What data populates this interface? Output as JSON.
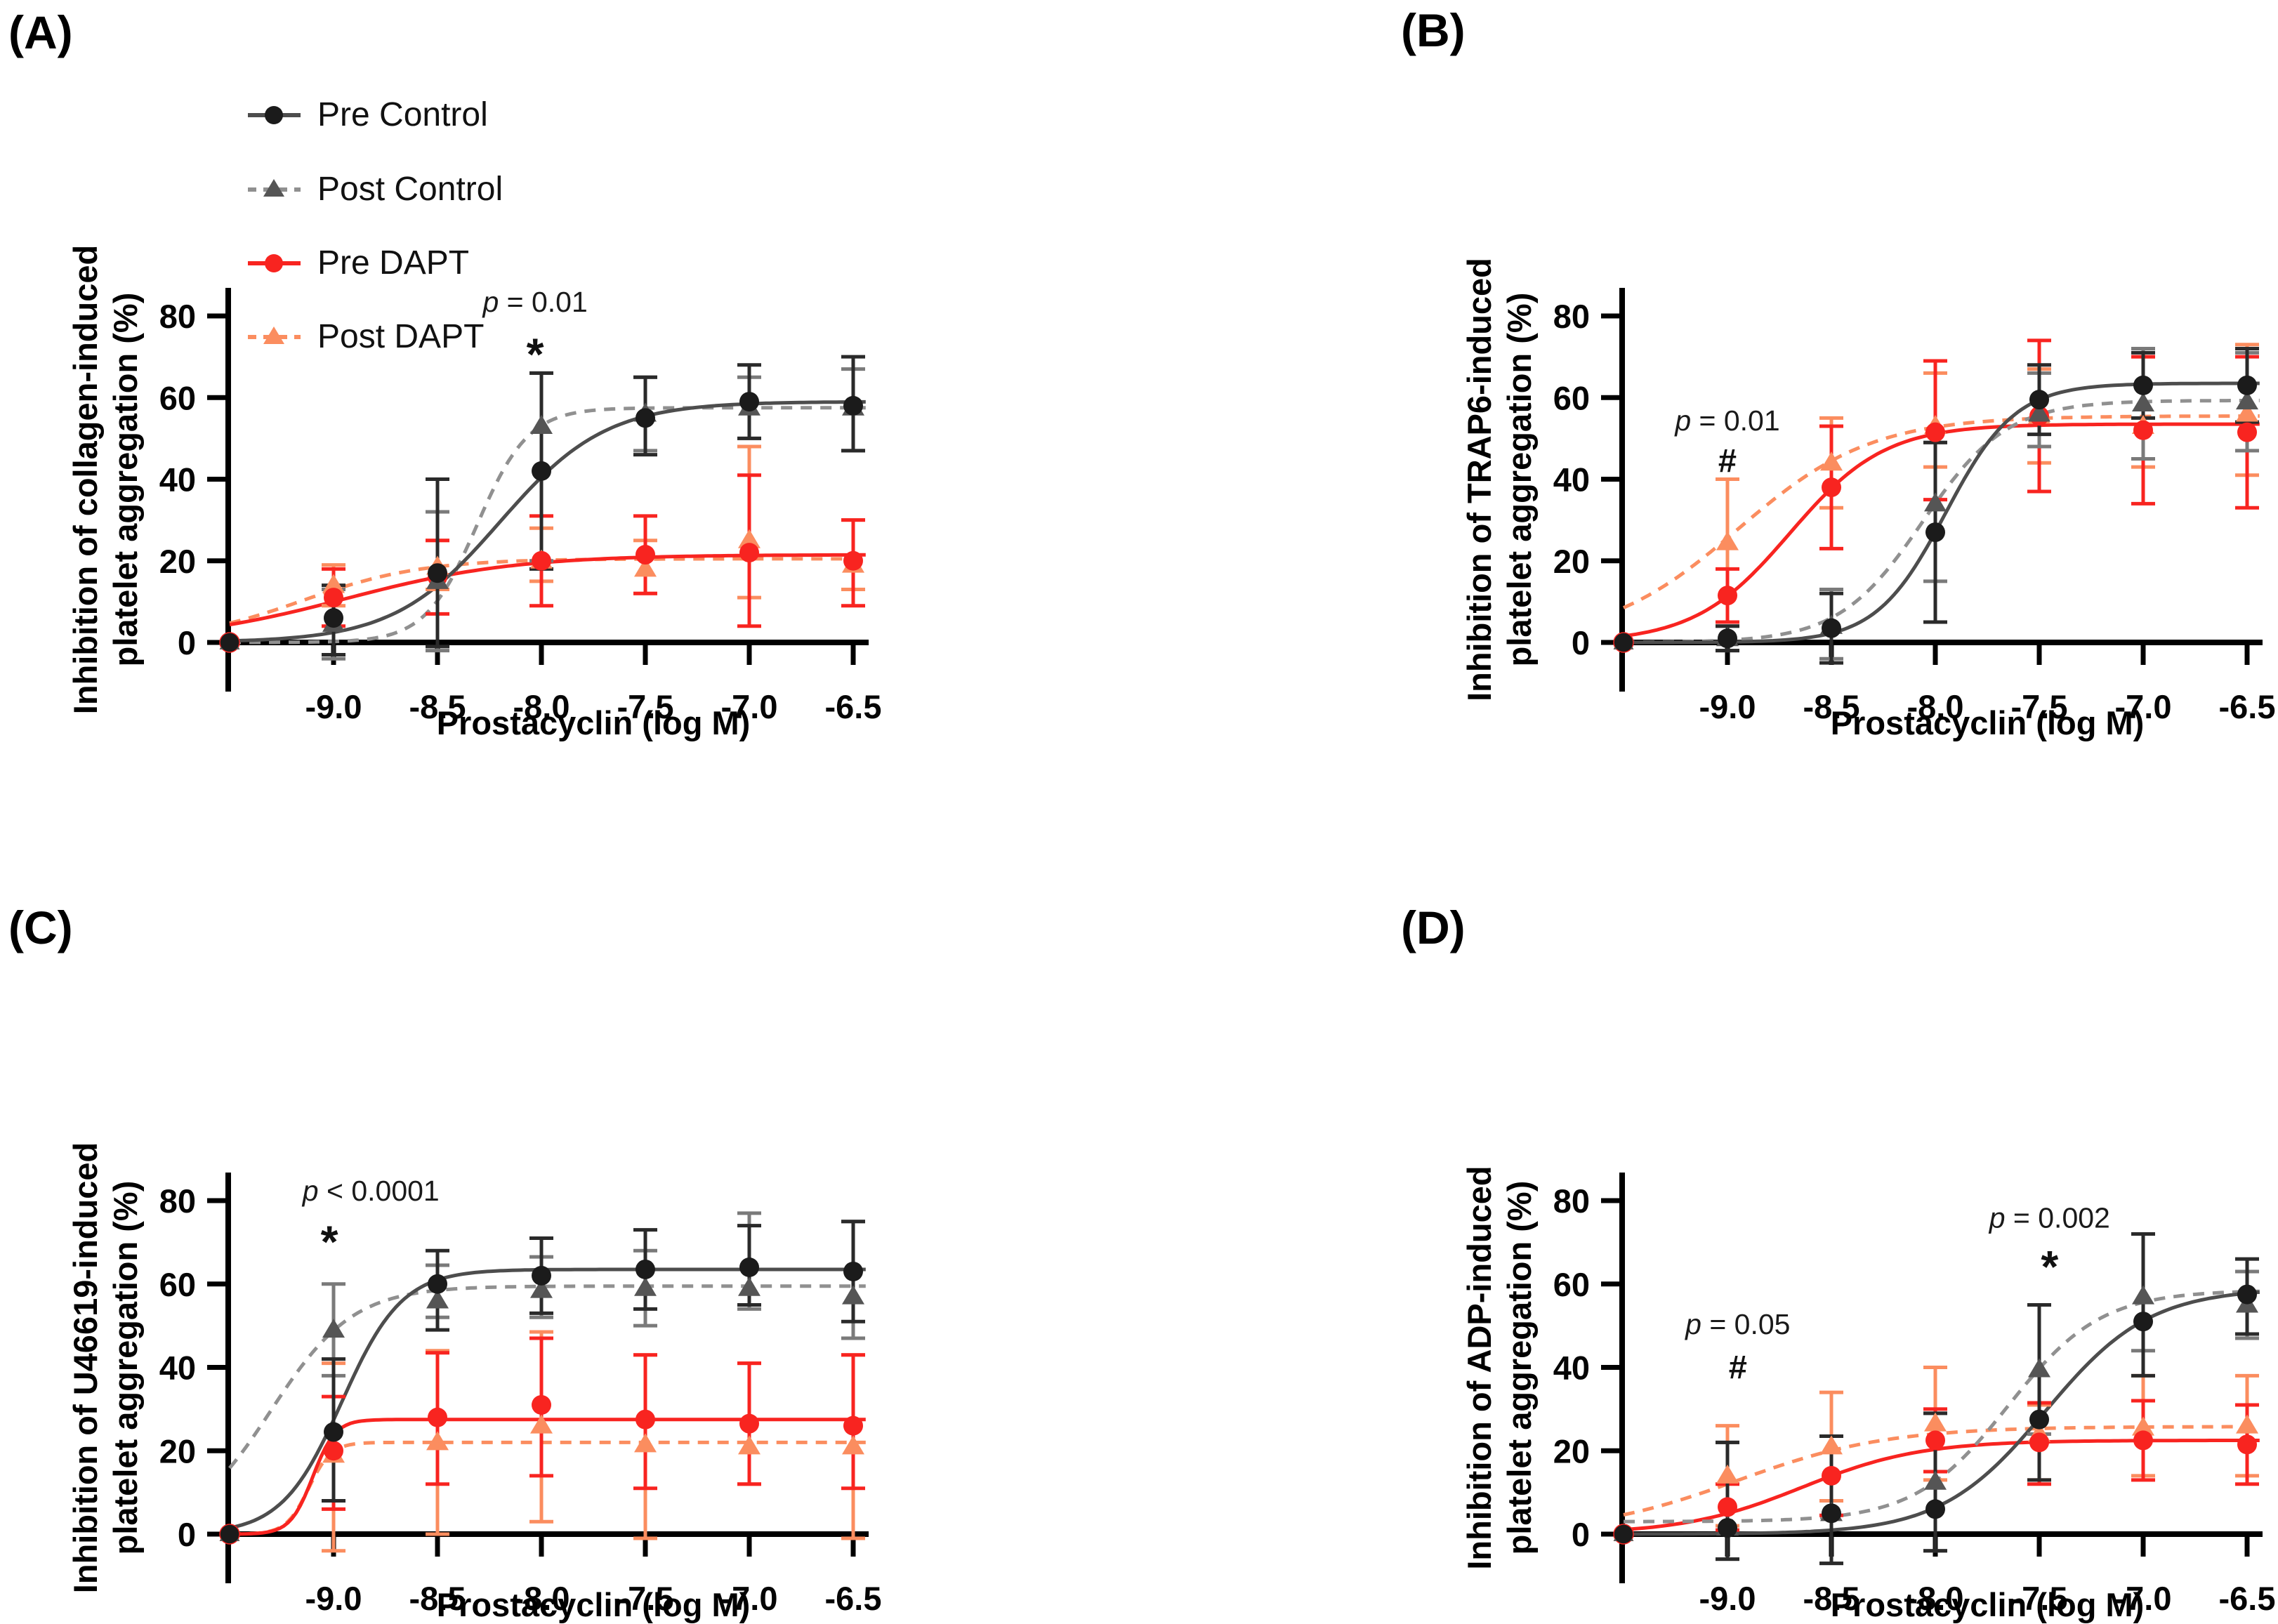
{
  "legend": {
    "items": [
      {
        "label": "Pre Control",
        "series": "pre_control"
      },
      {
        "label": "Post Control",
        "series": "post_control"
      },
      {
        "label": "Pre DAPT",
        "series": "pre_dapt"
      },
      {
        "label": "Post DAPT",
        "series": "post_dapt"
      }
    ]
  },
  "styles": {
    "pre_control": {
      "line": "#4d4d4d",
      "marker": "#1b1b1b",
      "error": "#2a2a2a",
      "dash": null,
      "marker_shape": "circle"
    },
    "post_control": {
      "line": "#909090",
      "marker": "#555555",
      "error": "#7a7a7a",
      "dash": "16 12",
      "marker_shape": "triangle"
    },
    "pre_dapt": {
      "line": "#F82420",
      "marker": "#F82420",
      "error": "#F82420",
      "dash": null,
      "marker_shape": "circle"
    },
    "post_dapt": {
      "line": "#FB8D5F",
      "marker": "#FB8D5F",
      "error": "#FB8D5F",
      "dash": "16 12",
      "marker_shape": "triangle"
    }
  },
  "chart_data": [
    {
      "panel": "A",
      "panel_label": "(A)",
      "type": "line",
      "agonist": "collagen",
      "ylabel": "Inhibition of collagen-induced\nplatelet aggregation (%)",
      "xlabel": "Prostacyclin (log M)",
      "x": [
        -9.0,
        -8.5,
        -8.0,
        -7.5,
        -7.0,
        -6.5
      ],
      "xticks": [
        "-9.0",
        "-8.5",
        "-8.0",
        "-7.5",
        "-7.0",
        "-6.5"
      ],
      "yticks": [
        "0",
        "20",
        "40",
        "60",
        "80"
      ],
      "xlim": [
        -9.5,
        -6.5
      ],
      "ylim": [
        0,
        80
      ],
      "baseline_point": {
        "x": -9.5,
        "y": 0
      },
      "series": [
        {
          "name": "Pre Control",
          "key": "pre_control",
          "values": [
            6,
            17,
            42,
            55,
            59,
            58
          ],
          "err_lo": [
            -3,
            -1,
            18,
            46,
            50,
            47
          ],
          "err_hi": [
            14,
            40,
            66,
            65,
            68,
            70
          ],
          "curve": {
            "bottom": 0,
            "top": 59,
            "logec50": -8.2,
            "hill": 1.7
          }
        },
        {
          "name": "Post Control",
          "key": "post_control",
          "values": [
            4.5,
            15,
            53,
            56,
            57.5,
            57.5
          ],
          "err_lo": [
            -4,
            -2,
            20,
            47,
            50,
            47
          ],
          "err_hi": [
            13,
            32,
            66,
            65,
            65,
            67
          ],
          "curve": {
            "bottom": 0,
            "top": 57.5,
            "logec50": -8.31,
            "hill": 3.5
          }
        },
        {
          "name": "Pre DAPT",
          "key": "pre_dapt",
          "values": [
            11,
            16,
            20,
            21.5,
            22,
            20
          ],
          "err_lo": [
            4,
            7,
            9,
            12,
            4,
            9
          ],
          "err_hi": [
            18,
            25,
            31,
            31,
            41,
            30
          ],
          "curve": {
            "bottom": 0,
            "top": 21.5,
            "logec50": -8.94,
            "hill": 1.06
          }
        },
        {
          "name": "Post DAPT",
          "key": "post_dapt",
          "values": [
            14,
            18.5,
            20,
            18,
            25,
            19
          ],
          "err_lo": [
            9,
            13,
            15,
            12,
            11,
            13
          ],
          "err_hi": [
            19,
            25,
            28,
            25,
            48,
            30
          ],
          "curve": {
            "bottom": 0,
            "top": 20.5,
            "logec50": -9.15,
            "hill": 1.5
          }
        }
      ],
      "annotations": [
        {
          "text": "p = 0.01",
          "symbol": "*",
          "x": -8.03,
          "symbol_x": -8.03,
          "text_y": 81,
          "symbol_y": 72
        }
      ]
    },
    {
      "panel": "B",
      "panel_label": "(B)",
      "type": "line",
      "agonist": "TRAP6",
      "ylabel": "Inhibition of TRAP6-induced\nplatelet aggregation (%)",
      "xlabel": "Prostacyclin (log M)",
      "x": [
        -9.0,
        -8.5,
        -8.0,
        -7.5,
        -7.0,
        -6.5
      ],
      "xticks": [
        "-9.0",
        "-8.5",
        "-8.0",
        "-7.5",
        "-7.0",
        "-6.5"
      ],
      "yticks": [
        "0",
        "20",
        "40",
        "60",
        "80"
      ],
      "xlim": [
        -9.5,
        -6.5
      ],
      "ylim": [
        0,
        80
      ],
      "baseline_point": {
        "x": -9.5,
        "y": 0
      },
      "series": [
        {
          "name": "Pre Control",
          "key": "pre_control",
          "values": [
            1,
            3.5,
            27,
            59.5,
            63,
            63
          ],
          "err_lo": [
            -2,
            -5,
            5,
            51,
            55,
            54
          ],
          "err_hi": [
            4,
            12,
            49,
            68,
            71,
            72
          ],
          "curve": {
            "bottom": 0,
            "top": 63.5,
            "logec50": -7.95,
            "hill": 2.6
          }
        },
        {
          "name": "Post Control",
          "key": "post_control",
          "values": [
            1,
            4,
            34,
            56,
            58.5,
            59
          ],
          "err_lo": [
            -2,
            -4,
            15,
            48,
            45,
            47
          ],
          "err_hi": [
            4,
            13,
            49,
            66,
            72,
            71
          ],
          "curve": {
            "bottom": 0,
            "top": 59.3,
            "logec50": -8.06,
            "hill": 2.15
          }
        },
        {
          "name": "Pre DAPT",
          "key": "pre_dapt",
          "values": [
            11.5,
            38,
            51.5,
            55.5,
            52,
            51.5
          ],
          "err_lo": [
            5,
            23,
            35,
            37,
            34,
            33
          ],
          "err_hi": [
            18,
            53,
            69,
            74,
            70,
            70
          ],
          "curve": {
            "bottom": 0,
            "top": 53.5,
            "logec50": -8.7,
            "hill": 1.9
          }
        },
        {
          "name": "Post DAPT",
          "key": "post_dapt",
          "values": [
            24.5,
            44,
            53,
            55.5,
            53,
            56
          ],
          "err_lo": [
            5,
            33,
            43,
            44,
            43,
            41
          ],
          "err_hi": [
            40,
            55,
            66,
            67,
            70,
            73
          ],
          "curve": {
            "bottom": 0,
            "top": 55.5,
            "logec50": -8.95,
            "hill": 1.35
          }
        }
      ],
      "annotations": [
        {
          "text": "p = 0.01",
          "symbol": "#",
          "x": -9.0,
          "symbol_x": -9.0,
          "text_y": 52,
          "symbol_y": 44.5
        }
      ]
    },
    {
      "panel": "C",
      "panel_label": "(C)",
      "type": "line",
      "agonist": "U46619",
      "ylabel": "Inhibition of U46619-induced\nplatelet aggregation (%)",
      "xlabel": "Prostacyclin (log M)",
      "x": [
        -9.0,
        -8.5,
        -8.0,
        -7.5,
        -7.0,
        -6.5
      ],
      "xticks": [
        "-9.0",
        "-8.5",
        "-8.0",
        "-7.5",
        "-7.0",
        "-6.5"
      ],
      "yticks": [
        "0",
        "20",
        "40",
        "60",
        "80"
      ],
      "xlim": [
        -9.5,
        -6.5
      ],
      "ylim": [
        0,
        80
      ],
      "baseline_point": {
        "x": -9.5,
        "y": 0
      },
      "series": [
        {
          "name": "Pre Control",
          "key": "pre_control",
          "values": [
            24.5,
            60,
            62,
            63.5,
            64,
            63
          ],
          "err_lo": [
            8,
            49,
            53,
            54,
            55,
            51
          ],
          "err_hi": [
            42,
            68,
            71,
            73,
            74,
            75
          ],
          "curve": {
            "bottom": 0,
            "top": 63.5,
            "logec50": -8.96,
            "hill": 3.0
          }
        },
        {
          "name": "Post Control",
          "key": "post_control",
          "values": [
            49,
            56,
            58.5,
            59,
            59,
            57
          ],
          "err_lo": [
            38,
            52,
            52,
            50,
            54,
            47
          ],
          "err_hi": [
            60,
            64.5,
            66.5,
            68,
            77,
            75
          ],
          "curve": {
            "bottom": 0,
            "top": 59.5,
            "logec50": -9.3,
            "hill": 2.2
          }
        },
        {
          "name": "Pre DAPT",
          "key": "pre_dapt",
          "values": [
            20,
            28,
            31,
            27.5,
            26.5,
            26
          ],
          "err_lo": [
            6,
            12,
            14,
            11,
            12,
            11
          ],
          "err_hi": [
            33,
            43.5,
            47,
            43,
            41,
            43
          ],
          "curve": {
            "bottom": 0,
            "top": 27.5,
            "logec50": -9.1,
            "hill": 8
          }
        },
        {
          "name": "Post DAPT",
          "key": "post_dapt",
          "values": [
            19,
            22,
            26,
            21.5,
            21,
            21
          ],
          "err_lo": [
            -4,
            0,
            3,
            -1,
            12,
            -1
          ],
          "err_hi": [
            41,
            44,
            48.5,
            43,
            41,
            43
          ],
          "curve": {
            "bottom": 0,
            "top": 22,
            "logec50": -9.12,
            "hill": 8
          }
        }
      ],
      "annotations": [
        {
          "text": "p < 0.0001",
          "symbol": "*",
          "x": -8.82,
          "symbol_x": -9.02,
          "text_y": 80,
          "symbol_y": 71.5
        }
      ]
    },
    {
      "panel": "D",
      "panel_label": "(D)",
      "type": "line",
      "agonist": "ADP",
      "ylabel": "Inhibition of ADP-induced\nplatelet aggregation (%)",
      "xlabel": "Prostacyclin (log M)",
      "x": [
        -9.0,
        -8.5,
        -8.0,
        -7.5,
        -7.0,
        -6.5
      ],
      "xticks": [
        "-9.0",
        "-8.5",
        "-8.0",
        "-7.5",
        "-7.0",
        "-6.5"
      ],
      "yticks": [
        "0",
        "20",
        "40",
        "60",
        "80"
      ],
      "xlim": [
        -9.5,
        -6.5
      ],
      "ylim": [
        0,
        80
      ],
      "baseline_point": {
        "x": -9.5,
        "y": 0
      },
      "series": [
        {
          "name": "Pre Control",
          "key": "pre_control",
          "values": [
            1.5,
            5,
            6,
            27.5,
            51,
            57.5
          ],
          "err_lo": [
            -6,
            -7,
            -4,
            13,
            38,
            48
          ],
          "err_hi": [
            22,
            23.5,
            29,
            55,
            72,
            66
          ],
          "curve": {
            "bottom": 0,
            "top": 59,
            "logec50": -7.47,
            "hill": 1.73
          }
        },
        {
          "name": "Post Control",
          "key": "post_control",
          "values": [
            1.5,
            5,
            12.5,
            39.5,
            57,
            55
          ],
          "err_lo": [
            -6,
            -7,
            -4,
            24,
            44,
            47
          ],
          "err_hi": [
            22,
            23.5,
            29,
            55,
            72,
            63
          ],
          "curve": {
            "bottom": 3,
            "top": 58.5,
            "logec50": -7.65,
            "hill": 1.94
          }
        },
        {
          "name": "Pre DAPT",
          "key": "pre_dapt",
          "values": [
            6.5,
            14,
            22.5,
            22,
            22.5,
            21.5
          ],
          "err_lo": [
            1,
            4.5,
            15,
            12,
            13,
            12
          ],
          "err_hi": [
            12,
            23.5,
            30,
            31.5,
            32,
            31
          ],
          "curve": {
            "bottom": 0,
            "top": 22.5,
            "logec50": -8.64,
            "hill": 1.52
          }
        },
        {
          "name": "Post DAPT",
          "key": "post_dapt",
          "values": [
            14,
            21,
            26.5,
            24,
            25.5,
            26
          ],
          "err_lo": [
            2,
            8,
            13,
            13,
            14,
            14
          ],
          "err_hi": [
            26,
            34,
            40,
            31,
            38,
            38
          ],
          "curve": {
            "bottom": 0,
            "top": 25.8,
            "logec50": -8.95,
            "hill": 1.2
          }
        }
      ],
      "annotations": [
        {
          "text": "p = 0.05",
          "symbol": "#",
          "x": -8.95,
          "symbol_x": -8.95,
          "text_y": 48,
          "symbol_y": 40
        },
        {
          "text": "p = 0.002",
          "symbol": "*",
          "x": -7.45,
          "symbol_x": -7.45,
          "text_y": 73.5,
          "symbol_y": 65.5
        }
      ]
    }
  ]
}
